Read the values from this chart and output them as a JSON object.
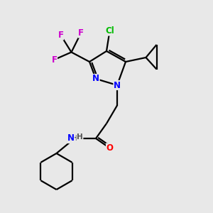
{
  "background_color": "#e8e8e8",
  "bond_color": "#000000",
  "atom_colors": {
    "N": "#0000ff",
    "O": "#ff0000",
    "F": "#cc00cc",
    "Cl": "#00bb00",
    "H": "#555555",
    "C": "#000000"
  },
  "figsize": [
    3.0,
    3.0
  ],
  "dpi": 100
}
